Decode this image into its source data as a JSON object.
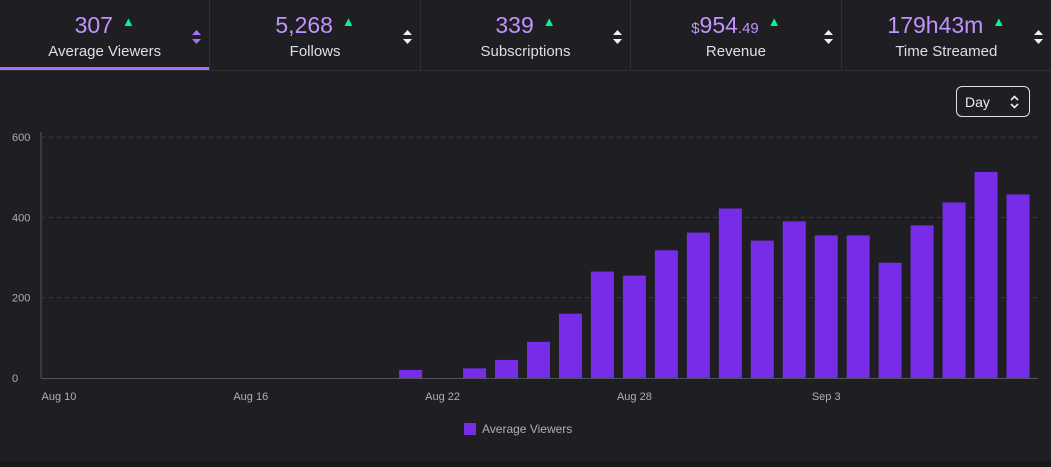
{
  "tabs": [
    {
      "value": "307",
      "label": "Average Viewers",
      "active": true
    },
    {
      "value": "5,268",
      "label": "Follows"
    },
    {
      "value": "339",
      "label": "Subscriptions"
    },
    {
      "value_currency": "$",
      "value_main": "954",
      "value_cents": ".49",
      "label": "Revenue"
    },
    {
      "value": "179h43m",
      "label": "Time Streamed"
    }
  ],
  "interval_select": {
    "value": "Day"
  },
  "colors": {
    "accent": "#a970ff",
    "bar": "#772ce8",
    "trend_up": "#00f593"
  },
  "chart_data": {
    "type": "bar",
    "categories": [
      "Aug 10",
      "Aug 11",
      "Aug 12",
      "Aug 13",
      "Aug 14",
      "Aug 15",
      "Aug 16",
      "Aug 17",
      "Aug 18",
      "Aug 19",
      "Aug 20",
      "Aug 21",
      "Aug 22",
      "Aug 23",
      "Aug 24",
      "Aug 25",
      "Aug 26",
      "Aug 27",
      "Aug 28",
      "Aug 29",
      "Aug 30",
      "Aug 31",
      "Sep 1",
      "Sep 2",
      "Sep 3",
      "Sep 4",
      "Sep 5",
      "Sep 6",
      "Sep 7",
      "Sep 8",
      "Sep 9"
    ],
    "tick_labels": [
      "Aug 10",
      "Aug 16",
      "Aug 22",
      "Aug 28",
      "Sep 3"
    ],
    "series": [
      {
        "name": "Average Viewers",
        "values": [
          0,
          0,
          0,
          0,
          0,
          0,
          0,
          0,
          0,
          0,
          0,
          20,
          0,
          24,
          45,
          90,
          160,
          265,
          255,
          318,
          362,
          422,
          342,
          390,
          355,
          355,
          287,
          380,
          437,
          513,
          457
        ]
      }
    ],
    "y_ticks": [
      "0",
      "200",
      "400",
      "600"
    ],
    "ylim": [
      0,
      600
    ],
    "grid": true,
    "legend": "bottom-center"
  }
}
